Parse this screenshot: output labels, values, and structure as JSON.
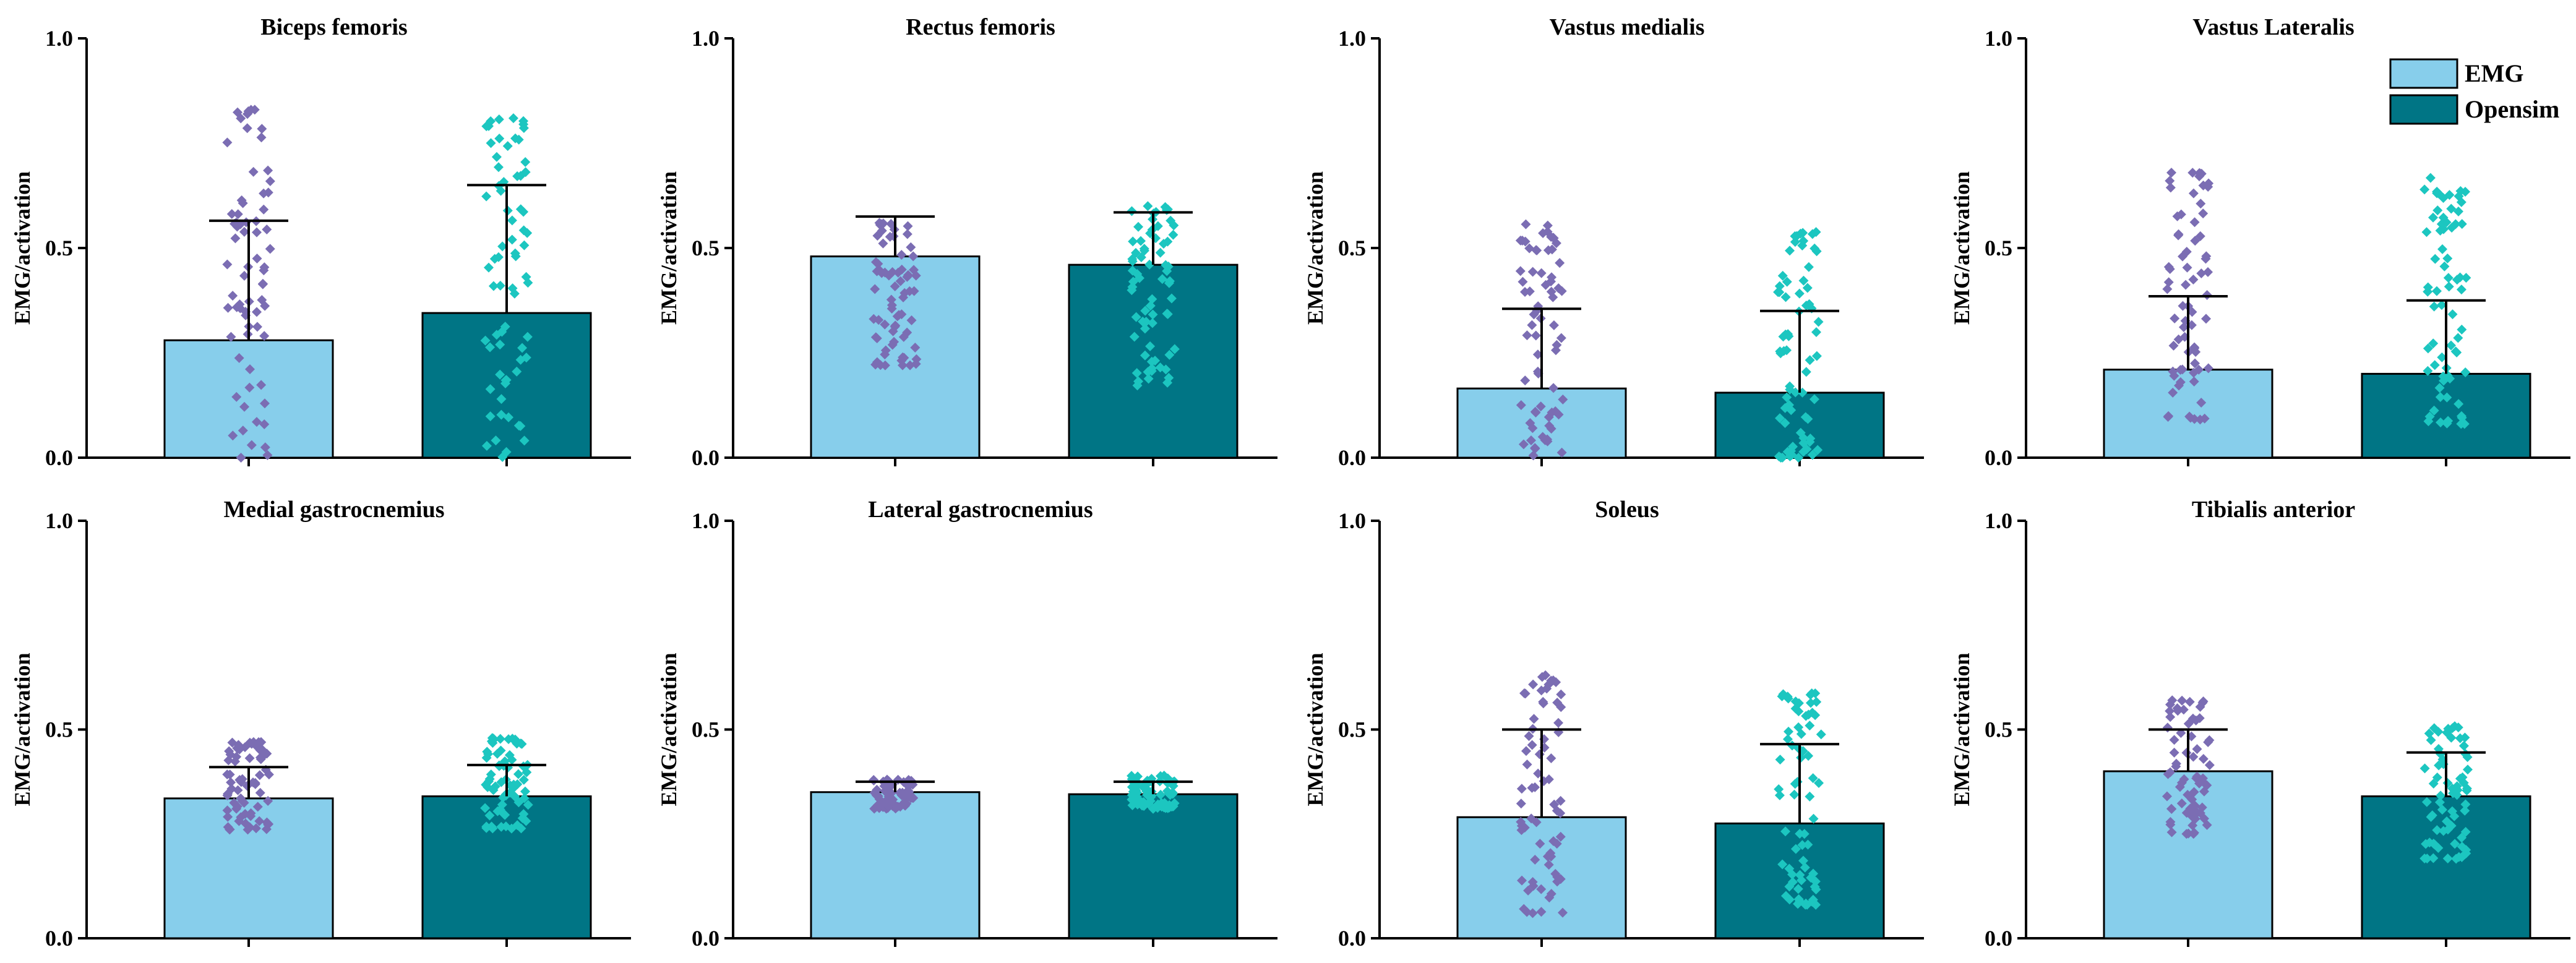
{
  "chart_data": {
    "type": "bar",
    "ylabel": "EMG/activation",
    "ylim": [
      0,
      1.0
    ],
    "yticks": [
      "0.0",
      "0.5",
      "1.0"
    ],
    "categories": [
      "EMG",
      "Opensim"
    ],
    "legend": {
      "placement": "top-right",
      "entries": [
        {
          "name": "EMG",
          "color": "#87CEEB"
        },
        {
          "name": "Opensim",
          "color": "#007585"
        }
      ]
    },
    "point_colors": [
      "#7B6DB3",
      "#1CC6C0"
    ],
    "panels": [
      {
        "title": "Biceps femoris",
        "means": [
          0.28,
          0.345
        ],
        "sd": [
          0.285,
          0.305
        ],
        "ranges": [
          [
            0.0,
            0.83
          ],
          [
            0.0,
            0.81
          ]
        ]
      },
      {
        "title": "Rectus femoris",
        "means": [
          0.48,
          0.46
        ],
        "sd": [
          0.095,
          0.125
        ],
        "ranges": [
          [
            0.22,
            0.56
          ],
          [
            0.17,
            0.6
          ]
        ]
      },
      {
        "title": "Vastus medialis",
        "means": [
          0.165,
          0.155
        ],
        "sd": [
          0.19,
          0.195
        ],
        "ranges": [
          [
            0.0,
            0.56
          ],
          [
            0.0,
            0.54
          ]
        ]
      },
      {
        "title": "Vastus Lateralis",
        "means": [
          0.21,
          0.2
        ],
        "sd": [
          0.175,
          0.175
        ],
        "ranges": [
          [
            0.09,
            0.68
          ],
          [
            0.08,
            0.67
          ]
        ]
      },
      {
        "title": "Medial gastrocnemius",
        "means": [
          0.335,
          0.34
        ],
        "sd": [
          0.075,
          0.075
        ],
        "ranges": [
          [
            0.26,
            0.47
          ],
          [
            0.26,
            0.48
          ]
        ]
      },
      {
        "title": "Lateral gastrocnemius",
        "means": [
          0.35,
          0.345
        ],
        "sd": [
          0.025,
          0.03
        ],
        "ranges": [
          [
            0.31,
            0.38
          ],
          [
            0.31,
            0.39
          ]
        ]
      },
      {
        "title": "Soleus",
        "means": [
          0.29,
          0.275
        ],
        "sd": [
          0.21,
          0.19
        ],
        "ranges": [
          [
            0.06,
            0.63
          ],
          [
            0.08,
            0.59
          ]
        ]
      },
      {
        "title": "Tibialis anterior",
        "means": [
          0.4,
          0.34
        ],
        "sd": [
          0.1,
          0.105
        ],
        "ranges": [
          [
            0.25,
            0.57
          ],
          [
            0.19,
            0.51
          ]
        ]
      }
    ]
  }
}
